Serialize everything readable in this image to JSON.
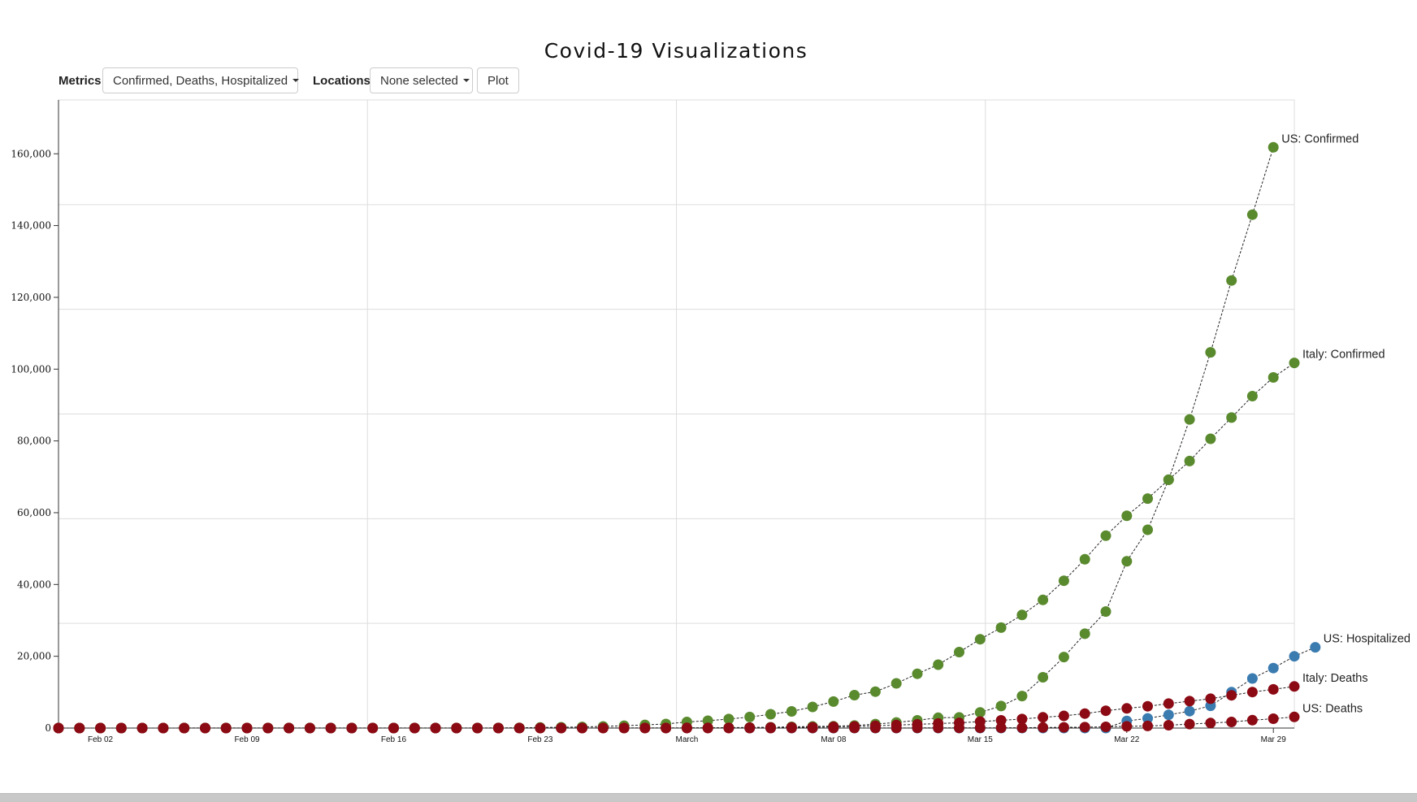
{
  "page": {
    "title": "Covid-19 Visualizations"
  },
  "controls": {
    "metrics_label": "Metrics",
    "metrics_value": "Confirmed, Deaths, Hospitalized",
    "locations_label": "Locations",
    "locations_value": "None selected",
    "plot_label": "Plot"
  },
  "colors": {
    "confirmed": "#5a8a2e",
    "deaths": "#8b0a14",
    "hospitalized": "#3a7bb0",
    "grid": "#dddddd"
  },
  "chart_data": {
    "type": "scatter",
    "title": "Covid-19 Visualizations",
    "xlabel": "",
    "ylabel": "",
    "x_start": "2020-01-31",
    "x_end": "2020-03-30",
    "ylim": [
      0,
      175000
    ],
    "yticks": [
      0,
      20000,
      40000,
      60000,
      80000,
      100000,
      120000,
      140000,
      160000
    ],
    "ytick_labels": [
      "0",
      "20,000",
      "40,000",
      "60,000",
      "80,000",
      "100,000",
      "120,000",
      "140,000",
      "160,000"
    ],
    "xticks": [
      {
        "date": "2020-02-02",
        "label": "Feb 02"
      },
      {
        "date": "2020-02-09",
        "label": "Feb 09"
      },
      {
        "date": "2020-02-16",
        "label": "Feb 16"
      },
      {
        "date": "2020-02-23",
        "label": "Feb 23"
      },
      {
        "date": "2020-03-01",
        "label": "March"
      },
      {
        "date": "2020-03-08",
        "label": "Mar 08"
      },
      {
        "date": "2020-03-15",
        "label": "Mar 15"
      },
      {
        "date": "2020-03-22",
        "label": "Mar 22"
      },
      {
        "date": "2020-03-29",
        "label": "Mar 29"
      }
    ],
    "grid": true,
    "series": [
      {
        "name": "US: Confirmed",
        "metric": "confirmed",
        "start_date": "2020-01-31",
        "values": [
          7,
          8,
          11,
          11,
          11,
          11,
          12,
          12,
          12,
          12,
          13,
          13,
          14,
          14,
          14,
          14,
          14,
          14,
          14,
          14,
          15,
          15,
          15,
          15,
          15,
          15,
          16,
          16,
          24,
          30,
          53,
          73,
          104,
          174,
          222,
          337,
          451,
          519,
          711,
          1109,
          1561,
          2157,
          2870,
          2968,
          4360,
          6141,
          8913,
          14149,
          19778,
          26286,
          32467,
          46450,
          55238,
          69194,
          85991,
          104686,
          124686,
          143025,
          161807
        ]
      },
      {
        "name": "Italy: Confirmed",
        "metric": "confirmed",
        "start_date": "2020-01-31",
        "values": [
          2,
          2,
          2,
          2,
          2,
          2,
          2,
          2,
          3,
          3,
          3,
          3,
          3,
          3,
          3,
          3,
          3,
          3,
          3,
          3,
          3,
          20,
          62,
          155,
          229,
          322,
          453,
          655,
          888,
          1128,
          1694,
          2036,
          2502,
          3089,
          3858,
          4636,
          5883,
          7375,
          9172,
          10149,
          12462,
          15113,
          17660,
          21157,
          24747,
          27980,
          31506,
          35713,
          41035,
          47021,
          53578,
          59138,
          63927,
          69176,
          74386,
          80589,
          86498,
          92472,
          97689,
          101739
        ]
      },
      {
        "name": "US: Hospitalized",
        "metric": "hospitalized",
        "start_date": "2020-03-04",
        "values": [
          0,
          0,
          0,
          0,
          0,
          0,
          0,
          0,
          0,
          0,
          0,
          0,
          0,
          0,
          0,
          0,
          0,
          0,
          2000,
          2700,
          3700,
          4700,
          6200,
          10000,
          13800,
          16700,
          20000,
          22500
        ]
      },
      {
        "name": "Italy: Deaths",
        "metric": "deaths",
        "start_date": "2020-01-31",
        "values": [
          0,
          0,
          0,
          0,
          0,
          0,
          0,
          0,
          0,
          0,
          0,
          0,
          0,
          0,
          0,
          0,
          0,
          0,
          0,
          0,
          0,
          1,
          2,
          3,
          7,
          10,
          12,
          17,
          21,
          29,
          34,
          52,
          79,
          107,
          148,
          197,
          233,
          366,
          463,
          631,
          827,
          1016,
          1266,
          1441,
          1809,
          2158,
          2503,
          2978,
          3405,
          4032,
          4825,
          5476,
          6077,
          6820,
          7503,
          8165,
          9134,
          10023,
          10779,
          11591
        ]
      },
      {
        "name": "US: Deaths",
        "metric": "deaths",
        "start_date": "2020-01-31",
        "values": [
          0,
          0,
          0,
          0,
          0,
          0,
          0,
          0,
          0,
          0,
          0,
          0,
          0,
          0,
          0,
          0,
          0,
          0,
          0,
          0,
          0,
          0,
          0,
          0,
          0,
          0,
          0,
          0,
          0,
          0,
          1,
          1,
          6,
          9,
          11,
          12,
          15,
          19,
          22,
          26,
          30,
          38,
          41,
          49,
          57,
          69,
          87,
          150,
          207,
          260,
          340,
          471,
          590,
          800,
          1100,
          1400,
          1700,
          2200,
          2600,
          3100
        ]
      }
    ]
  }
}
